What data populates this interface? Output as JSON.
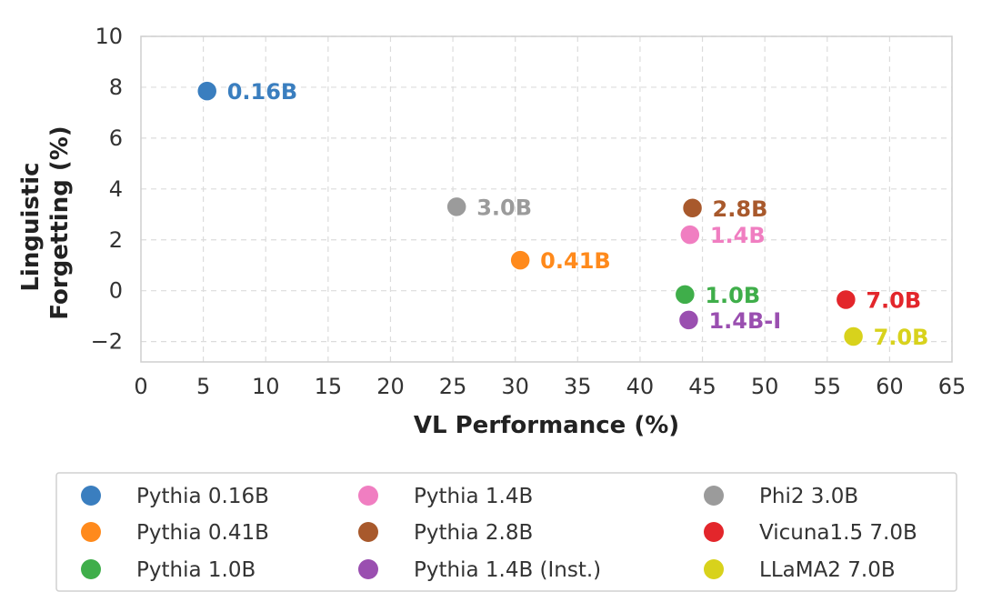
{
  "chart_data": {
    "type": "scatter",
    "title": "",
    "xlabel": "VL Performance (%)",
    "ylabel_lines": [
      "Linguistic",
      "Forgetting (%)"
    ],
    "xlim": [
      0,
      65
    ],
    "ylim": [
      -2.8,
      10
    ],
    "xticks": [
      0,
      5,
      10,
      15,
      20,
      25,
      30,
      35,
      40,
      45,
      50,
      55,
      60,
      65
    ],
    "yticks": [
      -2,
      0,
      2,
      4,
      6,
      8,
      10
    ],
    "xtick_labels": [
      "0",
      "5",
      "10",
      "15",
      "20",
      "25",
      "30",
      "35",
      "40",
      "45",
      "50",
      "55",
      "60",
      "65"
    ],
    "ytick_labels": [
      "−2",
      "0",
      "2",
      "4",
      "6",
      "8",
      "10"
    ],
    "grid": true,
    "legend_position": "bottom",
    "points": [
      {
        "name": "Pythia 0.16B",
        "label": "0.16B",
        "x": 5.3,
        "y": 7.85,
        "color": "#3a7ebf"
      },
      {
        "name": "Pythia 0.41B",
        "label": "0.41B",
        "x": 30.4,
        "y": 1.2,
        "color": "#ff8a1c"
      },
      {
        "name": "Pythia 1.0B",
        "label": "1.0B",
        "x": 43.6,
        "y": -0.15,
        "color": "#3fae4a"
      },
      {
        "name": "Pythia 1.4B",
        "label": "1.4B",
        "x": 44.0,
        "y": 2.2,
        "color": "#f07ec1"
      },
      {
        "name": "Pythia 2.8B",
        "label": "2.8B",
        "x": 44.2,
        "y": 3.25,
        "color": "#a8592c"
      },
      {
        "name": "Pythia 1.4B (Inst.)",
        "label": "1.4B-I",
        "x": 43.9,
        "y": -1.15,
        "color": "#9a4fb0"
      },
      {
        "name": "Phi2 3.0B",
        "label": "3.0B",
        "x": 25.3,
        "y": 3.3,
        "color": "#9b9b9b"
      },
      {
        "name": "Vicuna1.5 7.0B",
        "label": "7.0B",
        "x": 56.5,
        "y": -0.35,
        "color": "#e3262b"
      },
      {
        "name": "LLaMA2 7.0B",
        "label": "7.0B",
        "x": 57.1,
        "y": -1.8,
        "color": "#d8d21c"
      }
    ],
    "legend_columns": [
      [
        "Pythia 0.16B",
        "Pythia 0.41B",
        "Pythia 1.0B"
      ],
      [
        "Pythia 1.4B",
        "Pythia 2.8B",
        "Pythia 1.4B (Inst.)"
      ],
      [
        "Phi2 3.0B",
        "Vicuna1.5 7.0B",
        "LLaMA2 7.0B"
      ]
    ]
  }
}
